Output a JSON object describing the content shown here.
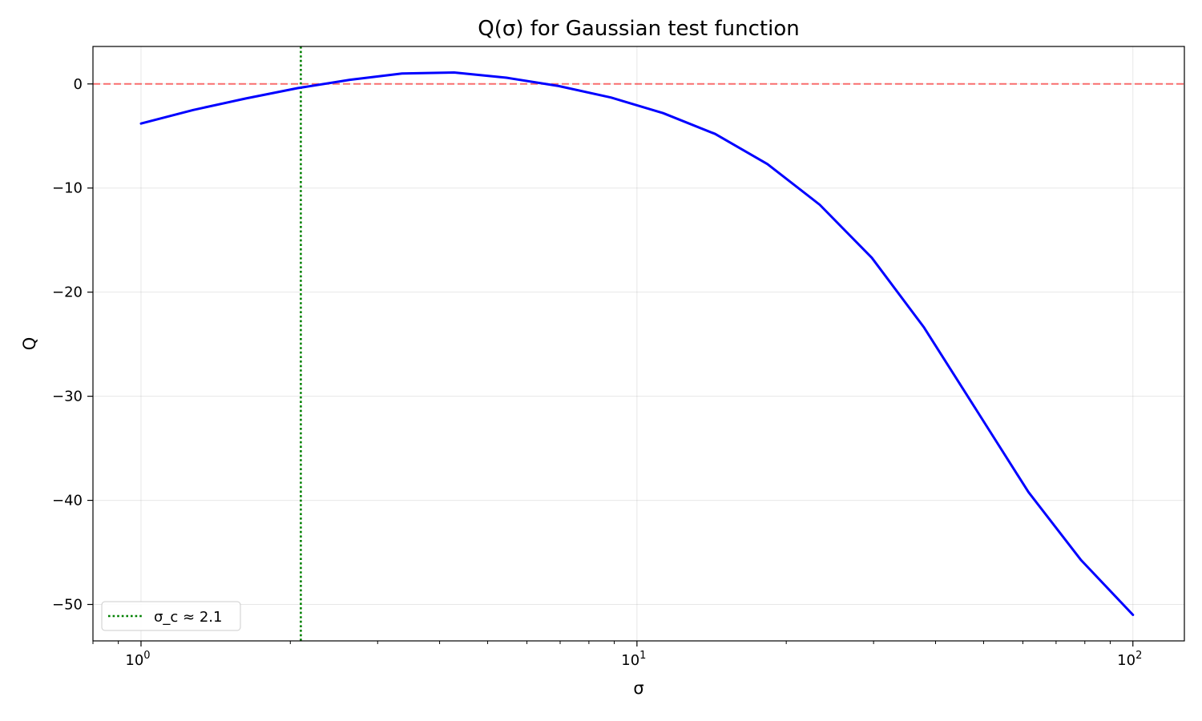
{
  "chart_data": {
    "type": "line",
    "title": "Q(σ) for Gaussian test function",
    "xlabel": "σ",
    "ylabel": "Q",
    "xscale": "log",
    "xlim": [
      0.8,
      127
    ],
    "ylim": [
      -53.5,
      3.6
    ],
    "xticks": [
      {
        "value": 1,
        "base": "10",
        "exp": "0"
      },
      {
        "value": 10,
        "base": "10",
        "exp": "1"
      },
      {
        "value": 100,
        "base": "10",
        "exp": "2"
      }
    ],
    "yticks": [
      {
        "value": 0,
        "label": "0"
      },
      {
        "value": -10,
        "label": "−10"
      },
      {
        "value": -20,
        "label": "−20"
      },
      {
        "value": -30,
        "label": "−30"
      },
      {
        "value": -40,
        "label": "−40"
      },
      {
        "value": -50,
        "label": "−50"
      }
    ],
    "grid": true,
    "series": [
      {
        "color": "#0000ff",
        "x": [
          1.0,
          1.274,
          1.624,
          2.069,
          2.637,
          3.36,
          4.281,
          5.456,
          6.952,
          8.859,
          11.29,
          14.38,
          18.33,
          23.36,
          29.76,
          37.93,
          48.33,
          61.58,
          78.48,
          100.0
        ],
        "y": [
          -3.8,
          -2.5,
          -1.4,
          -0.4,
          0.4,
          1.0,
          1.1,
          0.6,
          -0.2,
          -1.3,
          -2.8,
          -4.8,
          -7.7,
          -11.6,
          -16.7,
          -23.4,
          -31.3,
          -39.2,
          -45.7,
          -51.0
        ]
      }
    ],
    "hlines": [
      {
        "y": 0,
        "color": "#ff0000",
        "style": "dashed",
        "alpha": 0.55
      }
    ],
    "vlines": [
      {
        "x": 2.1,
        "color": "#008000",
        "style": "dotted",
        "label": "σ_c ≈ 2.1"
      }
    ],
    "legend": {
      "location": "lower-left"
    }
  }
}
